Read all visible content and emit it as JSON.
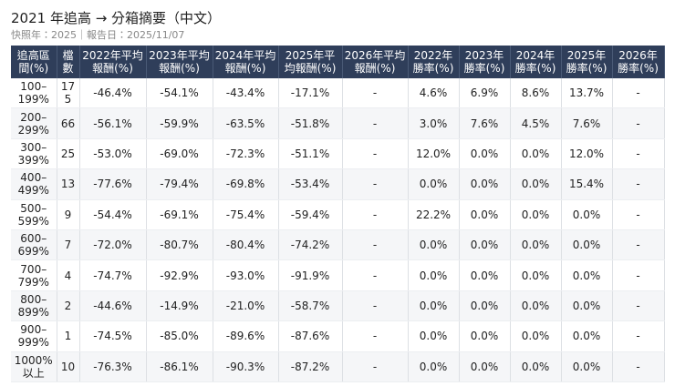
{
  "header": {
    "title": "2021 年追高 → 分箱摘要（中文）",
    "subtitle": "快照年：2025｜報告日：2025/11/07"
  },
  "table": {
    "columns": [
      "追高區間(%)",
      "檔數",
      "2022年平均報酬(%)",
      "2023年平均報酬(%)",
      "2024年平均報酬(%)",
      "2025年平均報酬(%)",
      "2026年平均報酬(%)",
      "2022年勝率(%)",
      "2023年勝率(%)",
      "2024年勝率(%)",
      "2025年勝率(%)",
      "2026年勝率(%)"
    ],
    "rows": [
      [
        "100–199%",
        "175",
        "-46.4%",
        "-54.1%",
        "-43.4%",
        "-17.1%",
        "-",
        "4.6%",
        "6.9%",
        "8.6%",
        "13.7%",
        "-"
      ],
      [
        "200–299%",
        "66",
        "-56.1%",
        "-59.9%",
        "-63.5%",
        "-51.8%",
        "-",
        "3.0%",
        "7.6%",
        "4.5%",
        "7.6%",
        "-"
      ],
      [
        "300–399%",
        "25",
        "-53.0%",
        "-69.0%",
        "-72.3%",
        "-51.1%",
        "-",
        "12.0%",
        "0.0%",
        "0.0%",
        "12.0%",
        "-"
      ],
      [
        "400–499%",
        "13",
        "-77.6%",
        "-79.4%",
        "-69.8%",
        "-53.4%",
        "-",
        "0.0%",
        "0.0%",
        "0.0%",
        "15.4%",
        "-"
      ],
      [
        "500–599%",
        "9",
        "-54.4%",
        "-69.1%",
        "-75.4%",
        "-59.4%",
        "-",
        "22.2%",
        "0.0%",
        "0.0%",
        "0.0%",
        "-"
      ],
      [
        "600–699%",
        "7",
        "-72.0%",
        "-80.7%",
        "-80.4%",
        "-74.2%",
        "-",
        "0.0%",
        "0.0%",
        "0.0%",
        "0.0%",
        "-"
      ],
      [
        "700–799%",
        "4",
        "-74.7%",
        "-92.9%",
        "-93.0%",
        "-91.9%",
        "-",
        "0.0%",
        "0.0%",
        "0.0%",
        "0.0%",
        "-"
      ],
      [
        "800–899%",
        "2",
        "-44.6%",
        "-14.9%",
        "-21.0%",
        "-58.7%",
        "-",
        "0.0%",
        "0.0%",
        "0.0%",
        "0.0%",
        "-"
      ],
      [
        "900–999%",
        "1",
        "-74.5%",
        "-85.0%",
        "-89.6%",
        "-87.6%",
        "-",
        "0.0%",
        "0.0%",
        "0.0%",
        "0.0%",
        "-"
      ],
      [
        "1000%以上",
        "10",
        "-76.3%",
        "-86.1%",
        "-90.3%",
        "-87.2%",
        "-",
        "0.0%",
        "0.0%",
        "0.0%",
        "0.0%",
        "-"
      ]
    ]
  }
}
